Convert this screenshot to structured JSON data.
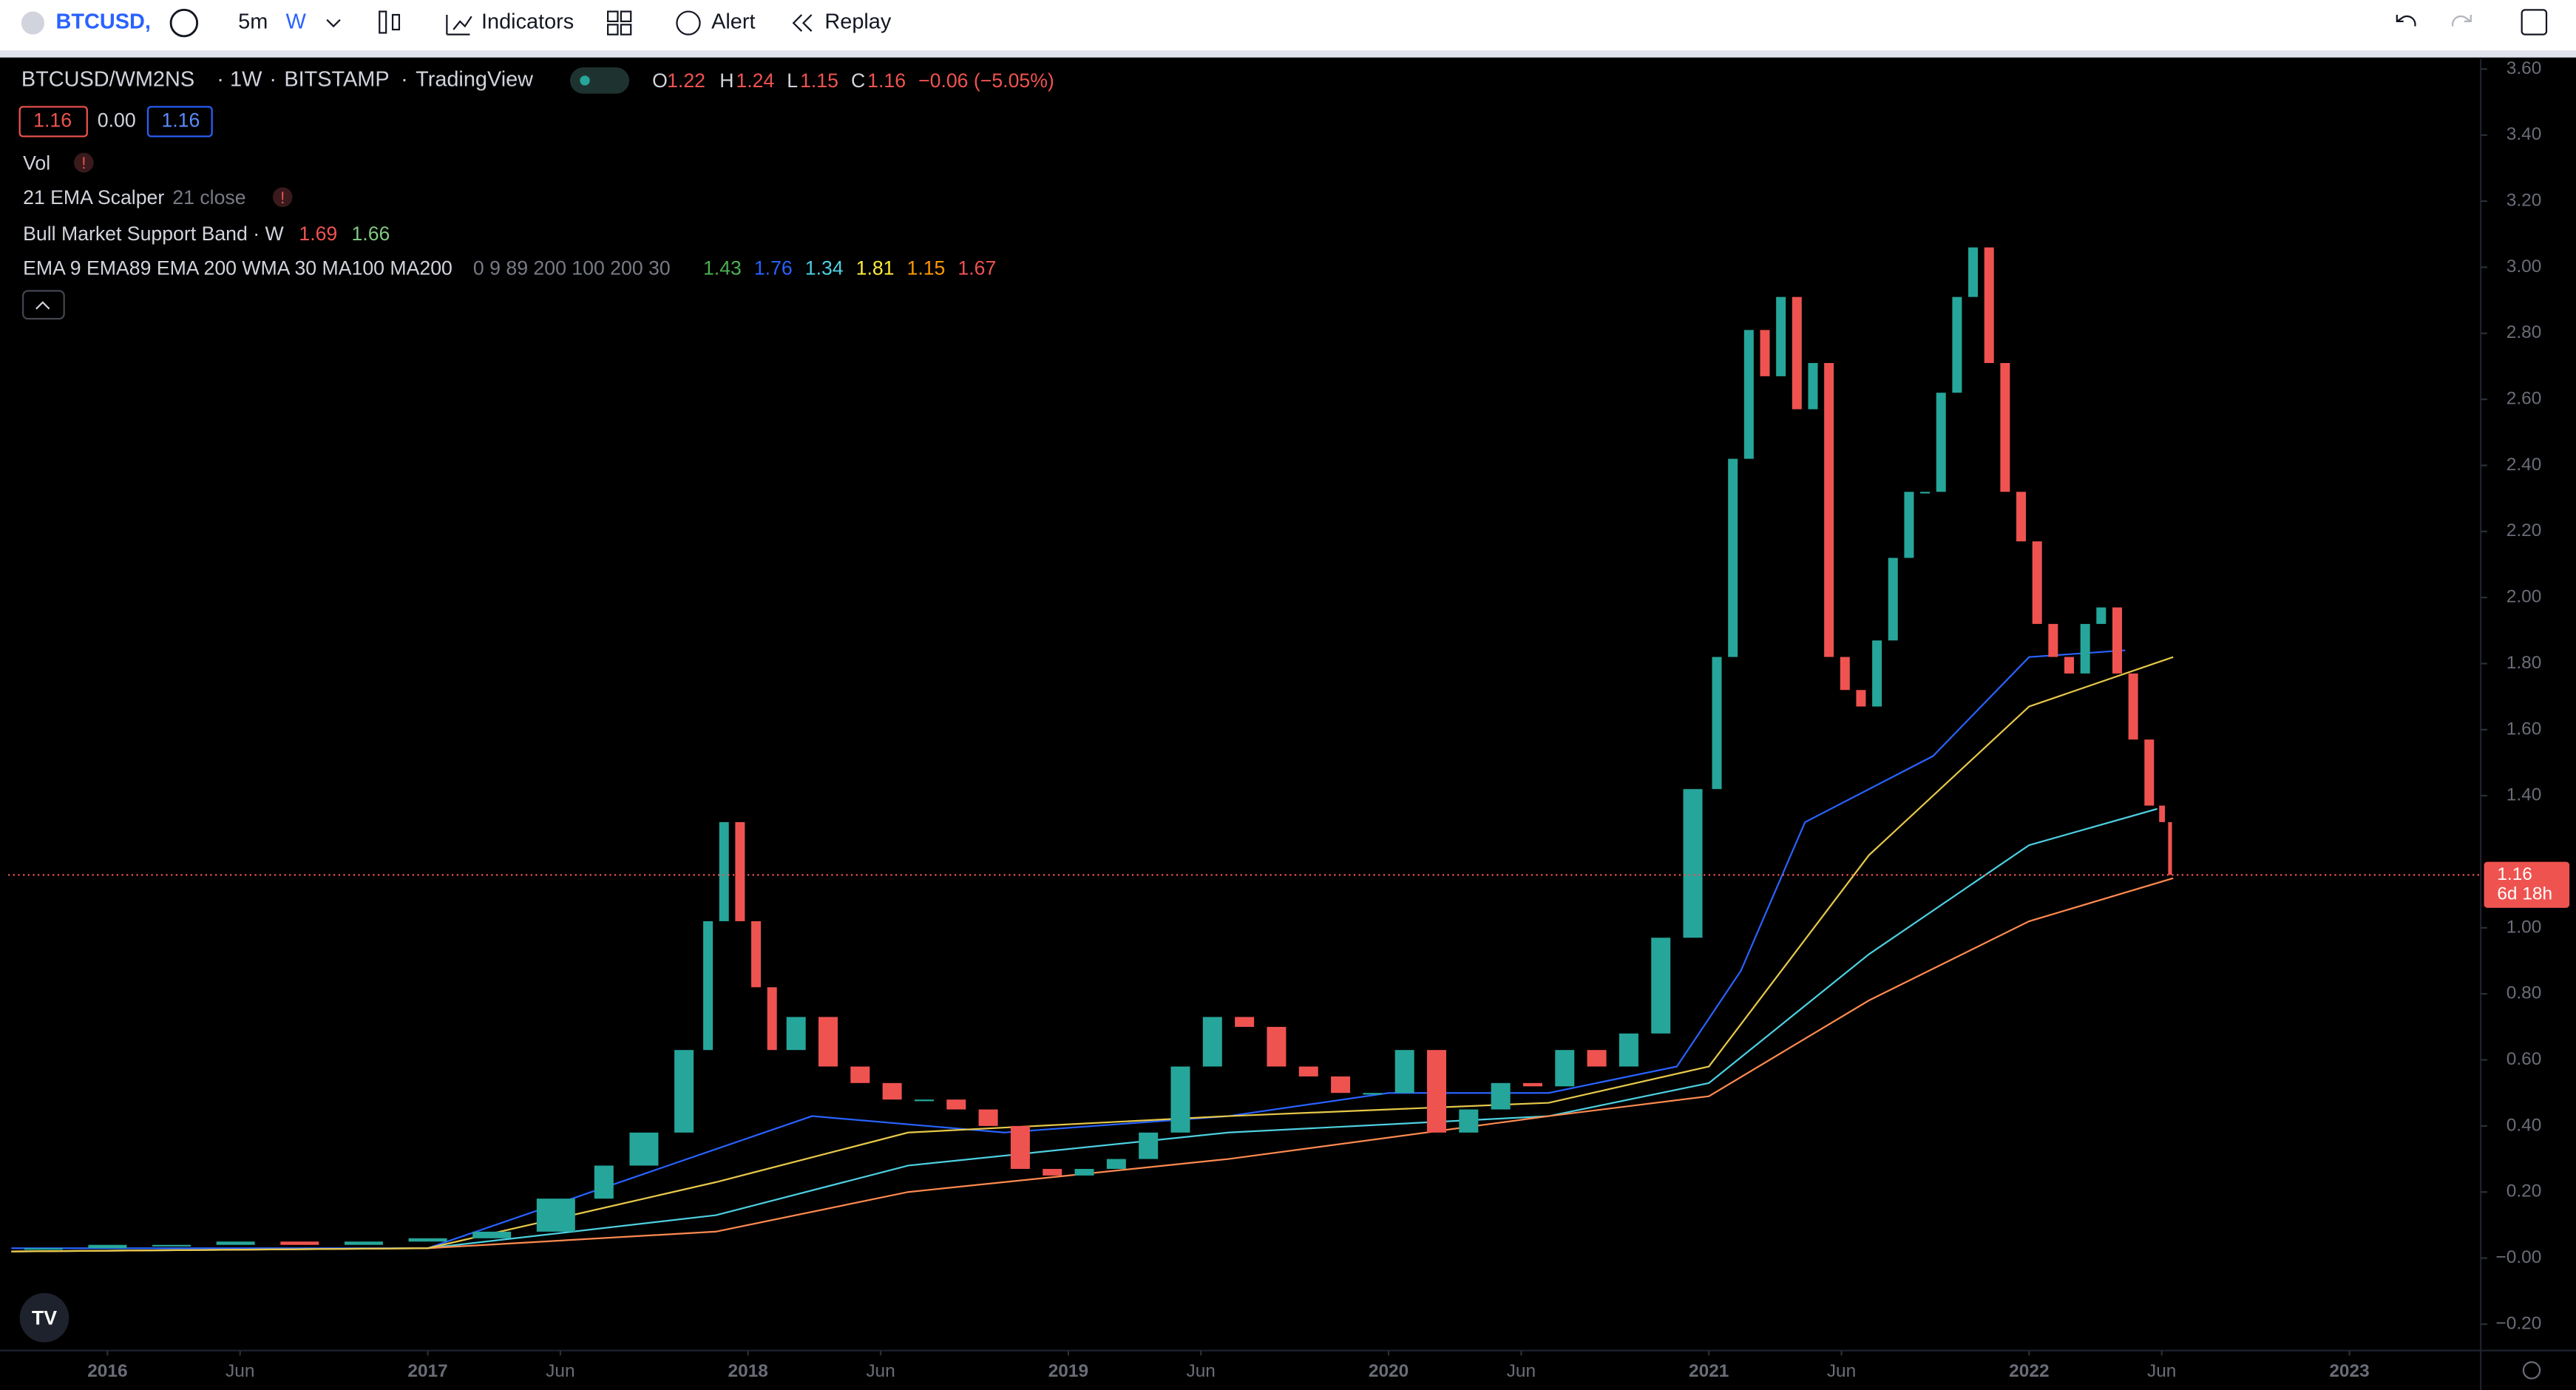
{
  "toolbar": {
    "symbol": "BTCUSD,",
    "interval": "5m",
    "interval_active": "W",
    "indicators": "Indicators",
    "alert": "Alert",
    "replay": "Replay"
  },
  "legend": {
    "symbol": "BTCUSD/WM2NS",
    "timeframe": "1W",
    "exchange": "BITSTAMP",
    "source": "TradingView",
    "o_label": "O",
    "o": "1.22",
    "h_label": "H",
    "h": "1.24",
    "l_label": "L",
    "l": "1.15",
    "c_label": "C",
    "c": "1.16",
    "change": "−0.06 (−5.05%)",
    "bid": "1.16",
    "spread": "0.00",
    "ask": "1.16",
    "vol": "Vol",
    "scalper": "21 EMA Scalper",
    "scalper_args": "21 close",
    "band": "Bull Market Support Band · W",
    "band_v1": "1.69",
    "band_v2": "1.66",
    "ma": "EMA 9 EMA89 EMA 200 WMA 30 MA100 MA200",
    "ma_args": "0 9 89 200 100 200 30",
    "ma_values": [
      {
        "text": "1.43",
        "color": "#4caf50"
      },
      {
        "text": "1.76",
        "color": "#2962ff"
      },
      {
        "text": "1.34",
        "color": "#4dd0e1"
      },
      {
        "text": "1.81",
        "color": "#ffeb3b"
      },
      {
        "text": "1.15",
        "color": "#ff9800"
      },
      {
        "text": "1.67",
        "color": "#ef5350"
      }
    ]
  },
  "chart_data": {
    "type": "candlestick",
    "x": [
      2015.7,
      2015.9,
      2016.1,
      2016.3,
      2016.5,
      2016.7,
      2016.9,
      2017.1,
      2017.3,
      2017.5,
      2017.6,
      2017.75,
      2017.85,
      2017.9,
      2017.95,
      2018.0,
      2018.05,
      2018.1,
      2018.2,
      2018.3,
      2018.4,
      2018.5,
      2018.6,
      2018.7,
      2018.8,
      2018.9,
      2019.0,
      2019.1,
      2019.2,
      2019.3,
      2019.4,
      2019.5,
      2019.6,
      2019.7,
      2019.8,
      2019.9,
      2020.0,
      2020.1,
      2020.2,
      2020.3,
      2020.4,
      2020.5,
      2020.6,
      2020.7,
      2020.8,
      2020.9,
      2021.0,
      2021.05,
      2021.1,
      2021.15,
      2021.2,
      2021.25,
      2021.3,
      2021.35,
      2021.4,
      2021.45,
      2021.5,
      2021.55,
      2021.6,
      2021.65,
      2021.7,
      2021.75,
      2021.8,
      2021.85,
      2021.9,
      2021.95,
      2022.0,
      2022.05,
      2022.1,
      2022.15,
      2022.2,
      2022.25,
      2022.3,
      2022.35,
      2022.4,
      2022.43,
      2022.45
    ],
    "values": [
      0.03,
      0.03,
      0.04,
      0.04,
      0.05,
      0.04,
      0.05,
      0.06,
      0.08,
      0.18,
      0.28,
      0.38,
      0.63,
      1.02,
      1.32,
      1.02,
      0.82,
      0.63,
      0.73,
      0.58,
      0.53,
      0.48,
      0.48,
      0.45,
      0.4,
      0.27,
      0.25,
      0.27,
      0.3,
      0.38,
      0.58,
      0.73,
      0.7,
      0.58,
      0.55,
      0.5,
      0.5,
      0.63,
      0.38,
      0.45,
      0.53,
      0.52,
      0.63,
      0.58,
      0.68,
      0.97,
      1.42,
      1.82,
      2.42,
      2.81,
      2.67,
      2.91,
      2.57,
      2.71,
      1.82,
      1.72,
      1.67,
      1.87,
      2.12,
      2.32,
      2.32,
      2.62,
      2.91,
      3.06,
      2.71,
      2.32,
      2.17,
      1.92,
      1.82,
      1.77,
      1.92,
      1.97,
      1.77,
      1.57,
      1.37,
      1.32,
      1.16
    ],
    "up_color": "#26a69a",
    "down_color": "#ef5350",
    "series": [
      {
        "color": "#2962ff",
        "x": [
          2015.7,
          2017.0,
          2017.9,
          2018.2,
          2018.8,
          2019.5,
          2020.0,
          2020.5,
          2020.9,
          2021.1,
          2021.3,
          2021.7,
          2022.0,
          2022.3
        ],
        "values": [
          0.03,
          0.03,
          0.33,
          0.43,
          0.38,
          0.43,
          0.5,
          0.5,
          0.58,
          0.87,
          1.32,
          1.52,
          1.82,
          1.84
        ]
      },
      {
        "color": "#4dd0e1",
        "x": [
          2015.7,
          2017.0,
          2017.9,
          2018.5,
          2019.5,
          2020.5,
          2021.0,
          2021.5,
          2022.0,
          2022.4
        ],
        "values": [
          0.02,
          0.03,
          0.13,
          0.28,
          0.38,
          0.43,
          0.53,
          0.92,
          1.25,
          1.36
        ]
      },
      {
        "color": "#ff8a50",
        "x": [
          2015.7,
          2017.0,
          2017.9,
          2018.5,
          2019.5,
          2020.5,
          2021.0,
          2021.5,
          2022.0,
          2022.45
        ],
        "values": [
          0.02,
          0.03,
          0.08,
          0.2,
          0.3,
          0.43,
          0.49,
          0.78,
          1.02,
          1.15
        ]
      },
      {
        "color": "#e6c84a",
        "x": [
          2015.7,
          2017.0,
          2017.9,
          2018.5,
          2019.5,
          2020.5,
          2021.0,
          2021.5,
          2022.0,
          2022.45
        ],
        "values": [
          0.02,
          0.03,
          0.23,
          0.38,
          0.43,
          0.47,
          0.58,
          1.22,
          1.67,
          1.82
        ]
      }
    ],
    "xlim": [
      2015.69,
      2023.41
    ],
    "ylim": [
      -0.28,
      3.63
    ],
    "xticks": [
      2016,
      {
        "value": 2016.414,
        "label": "Jun"
      },
      2017,
      {
        "value": 2017.414,
        "label": "Jun"
      },
      2018,
      {
        "value": 2018.414,
        "label": "Jun"
      },
      2019,
      {
        "value": 2019.414,
        "label": "Jun"
      },
      2020,
      {
        "value": 2020.414,
        "label": "Jun"
      },
      2021,
      {
        "value": 2021.414,
        "label": "Jun"
      },
      2022,
      {
        "value": 2022.414,
        "label": "Jun"
      },
      2023
    ],
    "yticks": [
      {
        "value": 3.6,
        "label": "3.60"
      },
      {
        "value": 3.4,
        "label": "3.40"
      },
      {
        "value": 3.2,
        "label": "3.20"
      },
      {
        "value": 3.0,
        "label": "3.00"
      },
      {
        "value": 2.8,
        "label": "2.80"
      },
      {
        "value": 2.6,
        "label": "2.60"
      },
      {
        "value": 2.4,
        "label": "2.40"
      },
      {
        "value": 2.2,
        "label": "2.20"
      },
      {
        "value": 2.0,
        "label": "2.00"
      },
      {
        "value": 1.8,
        "label": "1.80"
      },
      {
        "value": 1.6,
        "label": "1.60"
      },
      {
        "value": 1.4,
        "label": "1.40"
      },
      {
        "value": 1.0,
        "label": "1.00"
      },
      {
        "value": 0.8,
        "label": "0.80"
      },
      {
        "value": 0.6,
        "label": "0.60"
      },
      {
        "value": 0.4,
        "label": "0.40"
      },
      {
        "value": 0.2,
        "label": "0.20"
      },
      {
        "value": 0,
        "label": "−0.00"
      },
      {
        "value": -0.2,
        "label": "−0.20"
      }
    ],
    "last_price": 1.16,
    "countdown": "6d 18h"
  }
}
